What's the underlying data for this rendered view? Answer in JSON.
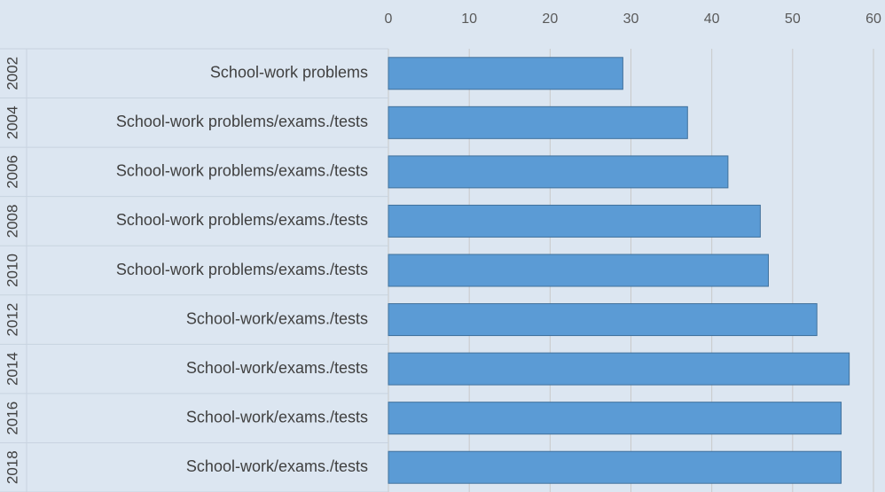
{
  "chart_data": {
    "type": "bar",
    "orientation": "horizontal",
    "categories": [
      "School-work problems",
      "School-work problems/exams./tests",
      "School-work problems/exams./tests",
      "School-work problems/exams./tests",
      "School-work problems/exams./tests",
      "School-work/exams./tests",
      "School-work/exams./tests",
      "School-work/exams./tests",
      "School-work/exams./tests"
    ],
    "category_groups": [
      "2002",
      "2004",
      "2006",
      "2008",
      "2010",
      "2012",
      "2014",
      "2016",
      "2018"
    ],
    "values": [
      29,
      37,
      42,
      46,
      47,
      53,
      57,
      56,
      56
    ],
    "color": "#5b9bd5",
    "xlim": [
      0,
      60
    ],
    "xticks": [
      0,
      10,
      20,
      30,
      40,
      50,
      60
    ],
    "grid": true
  }
}
